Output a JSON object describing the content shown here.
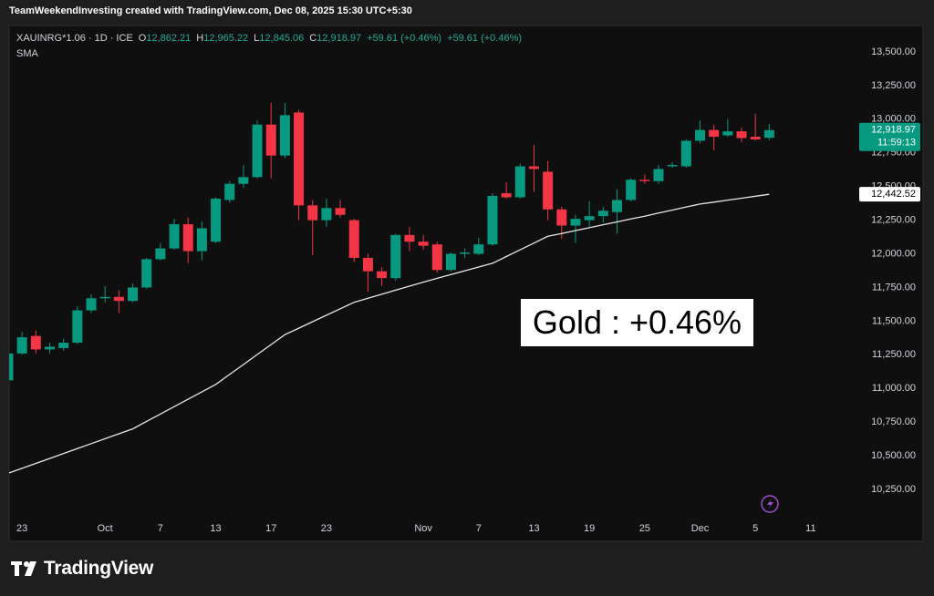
{
  "header": {
    "text": "TeamWeekendInvesting created with TradingView.com, Dec 08, 2025 15:30 UTC+5:30"
  },
  "chart_data": {
    "type": "candlestick",
    "symbol": "XAUINRG*1.06 · 1D · ICE",
    "ohlc_legend": [
      {
        "label": "O",
        "value": "12,862.21"
      },
      {
        "label": "H",
        "value": "12,965.22"
      },
      {
        "label": "L",
        "value": "12,845.06"
      },
      {
        "label": "C",
        "value": "12,918.97"
      }
    ],
    "change_labels": [
      "+59.61 (+0.46%)",
      "+59.61 (+0.46%)"
    ],
    "categories": [
      null,
      "23",
      null,
      null,
      null,
      null,
      null,
      "Oct",
      null,
      null,
      null,
      "7",
      null,
      null,
      null,
      "13",
      null,
      null,
      null,
      "17",
      null,
      null,
      null,
      "23",
      null,
      null,
      null,
      null,
      null,
      null,
      "Nov",
      null,
      null,
      null,
      "7",
      null,
      null,
      null,
      "13",
      null,
      null,
      null,
      "19",
      null,
      null,
      null,
      "25",
      null,
      null,
      null,
      "Dec",
      null,
      null,
      null,
      "5",
      null,
      null,
      null,
      "11"
    ],
    "open": [
      11060,
      11260,
      11390,
      11290,
      11300,
      11340,
      11580,
      11670,
      11680,
      11650,
      11750,
      11960,
      12040,
      12220,
      12020,
      12090,
      12400,
      12520,
      12570,
      12960,
      12730,
      13050,
      12360,
      12250,
      12340,
      12250,
      11970,
      11870,
      11820,
      12140,
      12090,
      12070,
      11880,
      12000,
      12000,
      12070,
      12450,
      12420,
      12650,
      12610,
      12330,
      12210,
      12250,
      12280,
      12310,
      12400,
      12550,
      12540,
      12650,
      12650,
      12840,
      12920,
      12880,
      12910,
      12870,
      12862.21,
      null,
      null,
      null
    ],
    "high": [
      11270,
      11420,
      11430,
      11340,
      11370,
      11610,
      11700,
      11760,
      11730,
      11780,
      11970,
      12080,
      12260,
      12270,
      12240,
      12420,
      12540,
      12660,
      12990,
      13120,
      13120,
      13070,
      12400,
      12410,
      12400,
      12260,
      12000,
      11900,
      12150,
      12200,
      12140,
      12090,
      12010,
      12040,
      12120,
      12450,
      12530,
      12670,
      12810,
      12690,
      12350,
      12290,
      12390,
      12350,
      12480,
      12560,
      12590,
      12660,
      12680,
      12850,
      12990,
      12960,
      13000,
      12940,
      13040,
      12965.22,
      null,
      null,
      null
    ],
    "low": [
      11050,
      11250,
      11260,
      11260,
      11280,
      11330,
      11560,
      11640,
      11560,
      11640,
      11740,
      11950,
      12030,
      11930,
      11950,
      12080,
      12380,
      12490,
      12560,
      12560,
      12710,
      12250,
      11990,
      12200,
      12270,
      11940,
      11720,
      11760,
      11800,
      12020,
      12030,
      11860,
      11870,
      11970,
      11990,
      12060,
      12410,
      12410,
      12460,
      12250,
      12110,
      12080,
      12200,
      12230,
      12150,
      12390,
      12520,
      12520,
      12640,
      12640,
      12820,
      12770,
      12870,
      12830,
      12840,
      12845.06,
      null,
      null,
      null
    ],
    "close": [
      11260,
      11380,
      11290,
      11310,
      11340,
      11580,
      11670,
      11680,
      11650,
      11750,
      11960,
      12040,
      12220,
      12020,
      12190,
      12410,
      12520,
      12570,
      12960,
      12730,
      13030,
      12360,
      12250,
      12340,
      12290,
      11970,
      11870,
      11820,
      12140,
      12090,
      12060,
      11880,
      12000,
      12010,
      12070,
      12430,
      12420,
      12650,
      12630,
      12330,
      12210,
      12260,
      12280,
      12320,
      12400,
      12550,
      12540,
      12630,
      12660,
      12840,
      12920,
      12870,
      12910,
      12860,
      12850,
      12918.97,
      null,
      null,
      null
    ],
    "up_color": "#089981",
    "down_color": "#f23645",
    "series": [
      {
        "name": "SMA",
        "color": "#e6e6e6",
        "values": [
          10370,
          10407,
          10443,
          10480,
          10517,
          10553,
          10590,
          10627,
          10663,
          10700,
          10755,
          10810,
          10865,
          10920,
          10975,
          11030,
          11104,
          11178,
          11252,
          11326,
          11400,
          11448,
          11496,
          11544,
          11592,
          11640,
          11670,
          11700,
          11730,
          11760,
          11790,
          11818,
          11846,
          11874,
          11902,
          11930,
          11980,
          12030,
          12080,
          12130,
          12151,
          12173,
          12194,
          12216,
          12237,
          12259,
          12280,
          12303,
          12325,
          12348,
          12370,
          12384,
          12399,
          12413,
          12428,
          12442.52,
          null,
          null,
          null
        ]
      }
    ],
    "ylim": [
      10054,
      13696
    ],
    "yticks": [
      {
        "value": 10250,
        "label": "10,250.00"
      },
      {
        "value": 10500,
        "label": "10,500.00"
      },
      {
        "value": 10750,
        "label": "10,750.00"
      },
      {
        "value": 11000,
        "label": "11,000.00"
      },
      {
        "value": 11250,
        "label": "11,250.00"
      },
      {
        "value": 11500,
        "label": "11,500.00"
      },
      {
        "value": 11750,
        "label": "11,750.00"
      },
      {
        "value": 12000,
        "label": "12,000.00"
      },
      {
        "value": 12250,
        "label": "12,250.00"
      },
      {
        "value": 12500,
        "label": "12,500.00"
      },
      {
        "value": 12750,
        "label": "12,750.00"
      },
      {
        "value": 13000,
        "label": "13,000.00"
      },
      {
        "value": 13250,
        "label": "13,250.00"
      },
      {
        "value": 13500,
        "label": "13,500.00"
      }
    ],
    "grid": false,
    "last_price": {
      "value": 12918.97,
      "label": "12,918.97"
    },
    "countdown": "11:59:13",
    "sma_last": {
      "value": 12442.52,
      "label": "12,442.52"
    },
    "annotation": "Gold : +0.46%"
  },
  "footer": {
    "brand": "TradingView"
  }
}
